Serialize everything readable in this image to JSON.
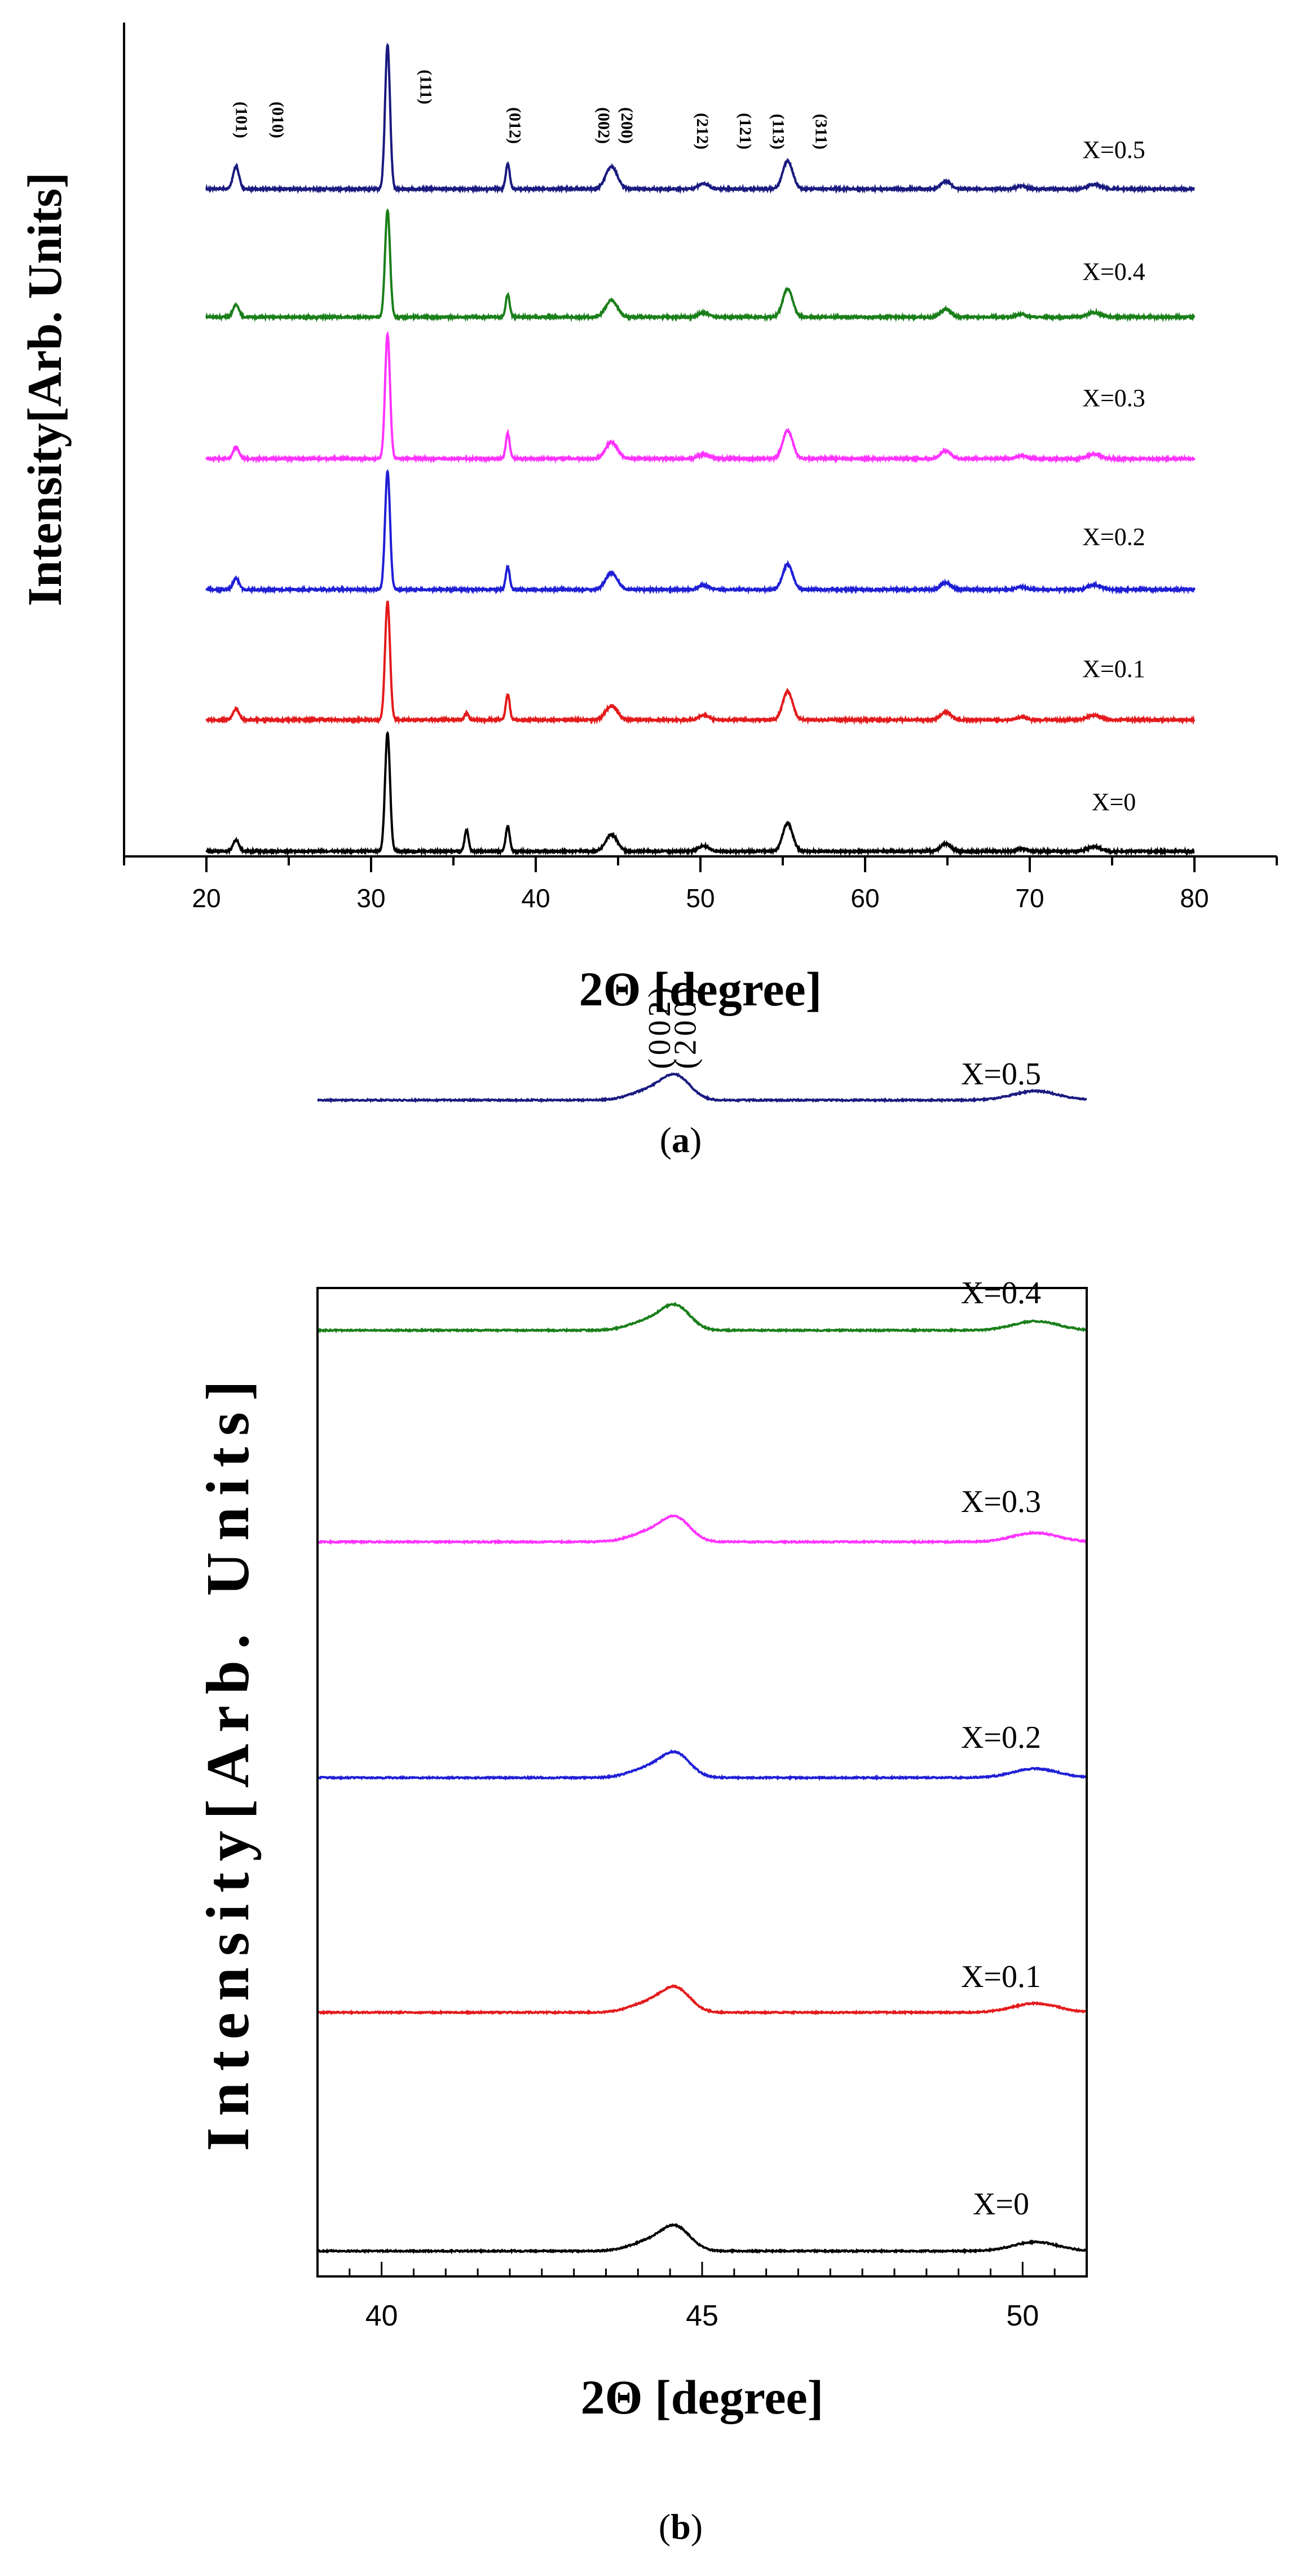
{
  "chart_data": [
    {
      "type": "line",
      "panel": "a",
      "caption_open": "(",
      "caption_letter": "a",
      "caption_close": ")",
      "xlabel": "2Θ [degree]",
      "ylabel": "Intensity[Arb. Units]",
      "xlim": [
        15,
        85
      ],
      "xticks": [
        "20",
        "30",
        "40",
        "50",
        "60",
        "70",
        "80"
      ],
      "series": [
        {
          "name": "X=0",
          "color": "#000000"
        },
        {
          "name": "X=0.1",
          "color": "#e31a1c"
        },
        {
          "name": "X=0.2",
          "color": "#1f1fd6"
        },
        {
          "name": "X=0.3",
          "color": "#ff33ff"
        },
        {
          "name": "X=0.4",
          "color": "#1a7f1a"
        },
        {
          "name": "X=0.5",
          "color": "#1a1a80"
        }
      ],
      "peak_positions": [
        21.8,
        31.0,
        35.8,
        38.3,
        44.6,
        50.2,
        55.3,
        64.9,
        69.5,
        73.9
      ],
      "reflections": [
        {
          "label": "(101)",
          "x": 21.8
        },
        {
          "label": "(010)",
          "x": 24.0
        },
        {
          "label": "(111)",
          "x": 33.0
        },
        {
          "label": "(012)",
          "x": 38.4
        },
        {
          "label": "(002)",
          "x": 43.8
        },
        {
          "label": "(200)",
          "x": 45.2
        },
        {
          "label": "(212)",
          "x": 49.8
        },
        {
          "label": "(121)",
          "x": 52.4
        },
        {
          "label": "(113)",
          "x": 54.4
        },
        {
          "label": "(311)",
          "x": 57.0
        }
      ]
    },
    {
      "type": "line",
      "panel": "b",
      "caption_open": "(",
      "caption_letter": "b",
      "caption_close": ")",
      "xlabel": "2Θ [degree]",
      "ylabel": "Intensity[Arb. Units]",
      "xlim": [
        39,
        51
      ],
      "xticks": [
        "40",
        "45",
        "50"
      ],
      "series": [
        {
          "name": "X=0",
          "color": "#000000"
        },
        {
          "name": "X=0.1",
          "color": "#e31a1c"
        },
        {
          "name": "X=0.2",
          "color": "#1f1fd6"
        },
        {
          "name": "X=0.3",
          "color": "#ff33ff"
        },
        {
          "name": "X=0.4",
          "color": "#1a7f1a"
        },
        {
          "name": "X=0.5",
          "color": "#1a1a80"
        }
      ],
      "peak_positions": [
        44.6,
        50.2
      ],
      "reflections": [
        {
          "label": "(002)",
          "x": 44.5
        },
        {
          "label": "(200)",
          "x": 44.9
        }
      ]
    }
  ]
}
